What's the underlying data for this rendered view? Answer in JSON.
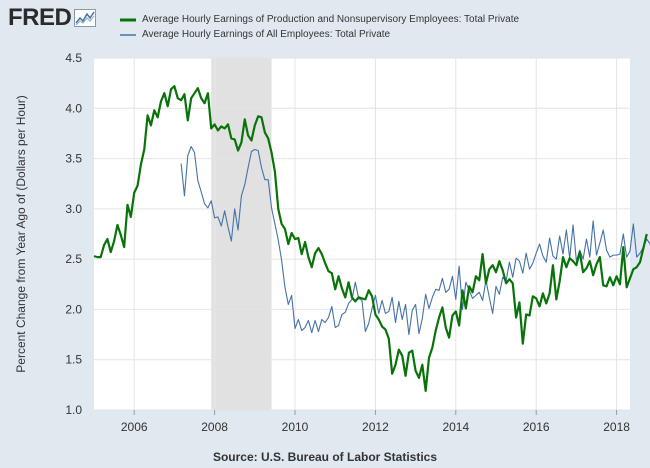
{
  "logo": {
    "text": "FRED",
    "icon": "line-chart-icon"
  },
  "source": "Source: U.S. Bureau of Labor Statistics",
  "colors": {
    "background": "#e1e9f0",
    "plot": "#ffffff",
    "recession": "#e1e1e1",
    "production": "#087308",
    "all": "#4572a7"
  },
  "chart_data": {
    "type": "line",
    "ylabel": "Percent Change from Year Ago of (Dollars per Hour)",
    "xlabel": "",
    "xlim": [
      "2005-01",
      "2018-05"
    ],
    "ylim": [
      1.0,
      4.5
    ],
    "yticks": [
      "1.0",
      "1.5",
      "2.0",
      "2.5",
      "3.0",
      "3.5",
      "4.0",
      "4.5"
    ],
    "xticks": [
      "2006",
      "2008",
      "2010",
      "2012",
      "2014",
      "2016",
      "2018"
    ],
    "grid": true,
    "legend_position": "top",
    "recession_shading": [
      [
        "2007-12",
        "2009-06"
      ]
    ],
    "series": [
      {
        "name": "Average Hourly Earnings of Production and Nonsupervisory Employees: Total Private",
        "color": "#087308",
        "start": "2005-01",
        "values": [
          2.53,
          2.52,
          2.52,
          2.64,
          2.7,
          2.57,
          2.68,
          2.84,
          2.74,
          2.62,
          3.04,
          2.92,
          3.16,
          3.23,
          3.44,
          3.59,
          3.93,
          3.83,
          3.98,
          3.91,
          4.07,
          4.15,
          4.02,
          4.19,
          4.22,
          4.1,
          4.08,
          4.14,
          3.88,
          4.1,
          4.15,
          4.2,
          4.1,
          4.05,
          4.15,
          3.8,
          3.84,
          3.78,
          3.82,
          3.8,
          3.84,
          3.7,
          3.69,
          3.58,
          3.66,
          3.89,
          3.73,
          3.68,
          3.83,
          3.92,
          3.91,
          3.76,
          3.7,
          3.56,
          3.37,
          3.0,
          2.85,
          2.8,
          2.65,
          2.76,
          2.7,
          2.71,
          2.55,
          2.67,
          2.52,
          2.42,
          2.56,
          2.61,
          2.55,
          2.46,
          2.38,
          2.36,
          2.2,
          2.33,
          2.21,
          2.12,
          2.27,
          2.12,
          2.08,
          2.12,
          2.11,
          2.1,
          2.19,
          2.13,
          1.95,
          1.9,
          1.83,
          1.8,
          1.71,
          1.36,
          1.45,
          1.6,
          1.54,
          1.34,
          1.57,
          1.59,
          1.39,
          1.32,
          1.45,
          1.19,
          1.52,
          1.62,
          1.79,
          1.92,
          2.02,
          1.82,
          1.72,
          1.94,
          1.98,
          1.84,
          2.19,
          2.01,
          2.23,
          2.17,
          2.33,
          2.29,
          2.55,
          2.26,
          2.4,
          2.44,
          2.37,
          2.48,
          2.39,
          2.26,
          2.3,
          2.26,
          1.92,
          2.07,
          1.66,
          1.95,
          1.94,
          2.13,
          2.11,
          2.03,
          2.16,
          2.06,
          2.16,
          2.44,
          2.1,
          2.28,
          2.52,
          2.42,
          2.51,
          2.48,
          2.44,
          2.57,
          2.37,
          2.41,
          2.48,
          2.34,
          2.45,
          2.52,
          2.24,
          2.23,
          2.32,
          2.24,
          2.33,
          2.25,
          2.62,
          2.22,
          2.31,
          2.4,
          2.42,
          2.47,
          2.61,
          2.75
        ]
      },
      {
        "name": "Average Hourly Earnings of All Employees: Total Private",
        "color": "#4572a7",
        "start": "2007-03",
        "values": [
          3.45,
          3.13,
          3.53,
          3.62,
          3.56,
          3.28,
          3.17,
          3.05,
          3.01,
          3.08,
          2.91,
          2.92,
          2.83,
          2.98,
          2.82,
          2.68,
          3.0,
          2.79,
          3.13,
          3.24,
          3.41,
          3.57,
          3.59,
          3.58,
          3.41,
          3.29,
          3.29,
          3.01,
          2.85,
          2.69,
          2.49,
          2.22,
          2.05,
          2.14,
          1.81,
          1.9,
          1.79,
          1.82,
          1.89,
          1.77,
          1.89,
          1.78,
          1.9,
          1.87,
          1.92,
          2.03,
          1.82,
          1.84,
          1.95,
          1.97,
          2.06,
          2.1,
          2.27,
          2.11,
          2.09,
          1.78,
          1.86,
          2.01,
          2.14,
          1.96,
          2.09,
          1.96,
          1.98,
          2.12,
          1.87,
          2.08,
          1.9,
          2.05,
          1.75,
          1.99,
          2.05,
          1.76,
          1.91,
          2.15,
          2.01,
          2.12,
          2.2,
          2.19,
          2.31,
          2.17,
          2.2,
          2.33,
          2.1,
          2.43,
          2.0,
          2.27,
          2.19,
          2.11,
          2.14,
          2.17,
          2.09,
          2.29,
          2.12,
          1.96,
          2.23,
          2.15,
          2.32,
          2.28,
          2.47,
          2.32,
          2.51,
          2.48,
          2.36,
          2.56,
          2.4,
          2.46,
          2.56,
          2.65,
          2.53,
          2.47,
          2.71,
          2.53,
          2.5,
          2.73,
          2.55,
          2.79,
          2.51,
          2.84,
          2.48,
          2.59,
          2.5,
          2.7,
          2.52,
          2.88,
          2.54,
          2.66,
          2.79,
          2.59,
          2.52,
          2.54,
          2.54,
          2.55,
          2.75,
          2.52,
          2.58,
          2.85,
          2.52,
          2.56,
          2.62,
          2.7,
          2.65,
          2.61
        ]
      }
    ]
  }
}
